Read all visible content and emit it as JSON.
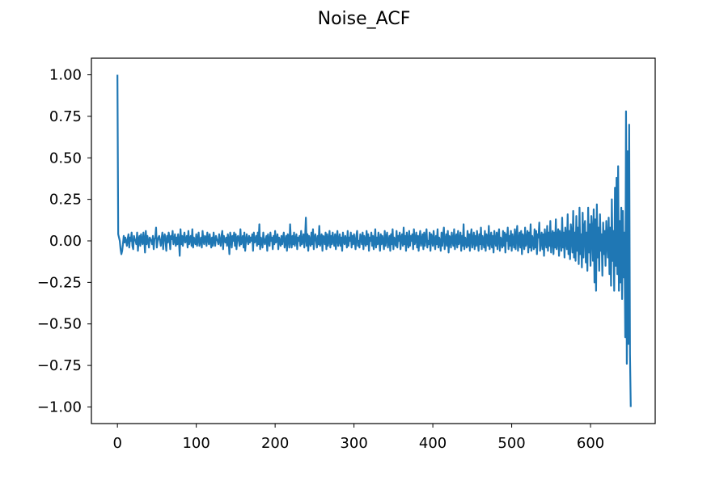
{
  "chart_data": {
    "type": "line",
    "title": "Noise_ACF",
    "xlabel": "",
    "ylabel": "",
    "xlim": [
      -33,
      682
    ],
    "ylim": [
      -1.1,
      1.1
    ],
    "grid": false,
    "x_ticks": [
      0,
      100,
      200,
      300,
      400,
      500,
      600
    ],
    "x_tick_labels": [
      "0",
      "100",
      "200",
      "300",
      "400",
      "500",
      "600"
    ],
    "y_ticks": [
      1.0,
      0.75,
      0.5,
      0.25,
      0.0,
      -0.25,
      -0.5,
      -0.75,
      -1.0
    ],
    "y_tick_labels": [
      "1.00",
      "0.75",
      "0.50",
      "0.25",
      "0.00",
      "−0.25",
      "−0.50",
      "−0.75",
      "−1.00"
    ],
    "series": [
      {
        "color": "#1f77b4",
        "x_start": 0,
        "x_step": 1,
        "values": [
          1.0,
          0.04,
          0.02,
          0.0,
          -0.05,
          -0.08,
          -0.06,
          -0.02,
          0.03,
          -0.01,
          0.02,
          0.0,
          -0.03,
          0.01,
          0.04,
          -0.04,
          0.02,
          0.0,
          0.05,
          -0.03,
          -0.05,
          0.03,
          0.01,
          0.0,
          -0.02,
          0.05,
          -0.06,
          0.01,
          0.03,
          -0.03,
          0.04,
          0.0,
          -0.02,
          0.05,
          0.01,
          -0.07,
          0.06,
          -0.02,
          0.03,
          0.0,
          -0.04,
          0.02,
          0.01,
          0.0,
          -0.02,
          0.03,
          -0.05,
          0.01,
          0.02,
          0.08,
          -0.04,
          0.0,
          0.02,
          0.03,
          0.0,
          -0.03,
          0.01,
          0.05,
          -0.05,
          0.02,
          0.04,
          0.0,
          -0.06,
          0.03,
          -0.01,
          0.05,
          0.02,
          -0.05,
          0.03,
          0.01,
          0.06,
          -0.02,
          0.0,
          0.04,
          -0.03,
          0.02,
          -0.02,
          0.04,
          0.0,
          -0.09,
          0.07,
          -0.02,
          0.03,
          -0.03,
          0.02,
          0.05,
          -0.01,
          0.0,
          0.03,
          -0.04,
          0.06,
          -0.02,
          0.01,
          0.03,
          -0.03,
          0.07,
          -0.04,
          0.02,
          0.0,
          -0.02,
          0.04,
          -0.03,
          0.01,
          0.05,
          -0.03,
          0.0,
          0.02,
          -0.04,
          0.06,
          0.0,
          -0.02,
          0.03,
          0.02,
          -0.03,
          0.05,
          0.01,
          -0.02,
          0.04,
          0.0,
          -0.04,
          0.02,
          -0.03,
          0.05,
          0.0,
          -0.03,
          0.03,
          0.01,
          0.0,
          -0.02,
          0.04,
          0.0,
          -0.03,
          0.03,
          0.06,
          -0.05,
          0.03,
          0.0,
          -0.01,
          0.02,
          -0.03,
          0.04,
          0.01,
          -0.08,
          0.05,
          0.02,
          -0.04,
          0.03,
          0.0,
          0.05,
          -0.03,
          0.04,
          -0.05,
          0.02,
          0.03,
          0.0,
          -0.03,
          0.07,
          -0.02,
          0.0,
          0.03,
          -0.04,
          0.05,
          -0.06,
          0.0,
          0.04,
          0.0,
          -0.02,
          0.03,
          -0.01,
          0.02,
          0.0,
          0.04,
          -0.06,
          0.05,
          -0.01,
          0.0,
          0.03,
          -0.03,
          0.05,
          -0.02,
          0.1,
          -0.05,
          0.02,
          0.0,
          -0.04,
          0.05,
          0.0,
          -0.02,
          0.01,
          0.03,
          -0.06,
          0.04,
          0.0,
          -0.03,
          0.05,
          0.0,
          0.02,
          -0.05,
          0.03,
          -0.02,
          0.06,
          -0.01,
          0.0,
          0.04,
          -0.05,
          0.02,
          0.0,
          -0.03,
          0.03,
          -0.02,
          0.02,
          0.05,
          -0.04,
          0.0,
          0.03,
          -0.06,
          0.04,
          0.02,
          -0.04,
          0.1,
          0.0,
          -0.04,
          0.03,
          -0.02,
          0.05,
          -0.03,
          0.01,
          0.04,
          -0.05,
          0.02,
          0.0,
          0.03,
          -0.03,
          0.06,
          -0.02,
          0.0,
          0.04,
          -0.04,
          0.02,
          0.14,
          -0.03,
          0.04,
          -0.06,
          0.03,
          0.0,
          -0.03,
          0.05,
          -0.02,
          0.07,
          -0.05,
          0.02,
          0.04,
          0.0,
          -0.04,
          0.03,
          -0.02,
          0.09,
          -0.03,
          0.0,
          0.04,
          -0.06,
          0.03,
          0.02,
          -0.02,
          0.05,
          -0.05,
          0.04,
          -0.03,
          0.0,
          0.06,
          -0.04,
          0.03,
          -0.02,
          0.05,
          0.0,
          -0.03,
          0.04,
          -0.05,
          0.02,
          0.06,
          -0.03,
          0.0,
          0.04,
          -0.03,
          0.02,
          -0.06,
          0.05,
          0.0,
          -0.02,
          0.03,
          0.0,
          -0.04,
          0.06,
          -0.03,
          0.02,
          0.0,
          0.05,
          -0.04,
          0.03,
          -0.02,
          0.04,
          0.0,
          -0.05,
          0.03,
          0.06,
          -0.03,
          0.0,
          -0.04,
          0.04,
          0.02,
          -0.02,
          0.05,
          -0.05,
          0.03,
          0.0,
          -0.03,
          0.06,
          -0.02,
          0.04,
          -0.06,
          0.02,
          0.0,
          0.05,
          -0.03,
          0.03,
          -0.05,
          0.0,
          0.07,
          -0.04,
          0.02,
          -0.02,
          0.05,
          0.0,
          -0.06,
          0.04,
          -0.02,
          0.03,
          0.0,
          -0.05,
          0.06,
          -0.03,
          0.02,
          0.05,
          -0.04,
          0.0,
          0.03,
          -0.06,
          0.04,
          -0.02,
          0.07,
          -0.05,
          0.02,
          0.0,
          -0.03,
          0.06,
          -0.04,
          0.03,
          0.0,
          0.05,
          -0.05,
          0.02,
          0.04,
          -0.03,
          0.08,
          -0.02,
          0.03,
          -0.06,
          0.05,
          0.0,
          -0.04,
          0.06,
          -0.03,
          0.03,
          0.0,
          0.04,
          -0.05,
          0.07,
          -0.02,
          0.0,
          0.05,
          -0.04,
          0.03,
          -0.06,
          0.02,
          0.06,
          -0.03,
          0.0,
          0.04,
          -0.05,
          0.05,
          -0.03,
          0.02,
          0.07,
          -0.04,
          0.0,
          -0.02,
          0.05,
          -0.06,
          0.04,
          0.02,
          -0.03,
          0.06,
          0.0,
          -0.05,
          0.03,
          -0.02,
          0.07,
          -0.04,
          0.02,
          0.0,
          -0.06,
          0.05,
          -0.03,
          0.03,
          0.08,
          -0.05,
          0.0,
          0.04,
          -0.03,
          0.06,
          -0.07,
          0.03,
          0.02,
          -0.04,
          0.05,
          0.0,
          -0.03,
          0.07,
          -0.05,
          0.02,
          0.04,
          -0.04,
          0.06,
          -0.02,
          0.0,
          0.05,
          -0.06,
          0.03,
          -0.03,
          0.1,
          -0.05,
          0.02,
          0.0,
          -0.04,
          0.06,
          -0.03,
          0.04,
          -0.06,
          0.03,
          0.07,
          -0.04,
          0.0,
          0.05,
          -0.05,
          0.03,
          -0.03,
          0.06,
          0.0,
          -0.06,
          0.04,
          -0.02,
          0.08,
          -0.05,
          0.03,
          0.0,
          -0.04,
          0.06,
          -0.06,
          0.04,
          0.02,
          -0.03,
          0.09,
          -0.05,
          0.0,
          0.05,
          -0.04,
          0.03,
          -0.07,
          0.06,
          0.0,
          -0.03,
          0.05,
          -0.05,
          0.03,
          0.07,
          -0.06,
          0.02,
          0.0,
          -0.04,
          0.06,
          -0.03,
          0.05,
          -0.07,
          0.04,
          0.0,
          0.08,
          -0.05,
          0.03,
          -0.03,
          0.06,
          -0.06,
          0.04,
          0.0,
          -0.04,
          0.07,
          -0.05,
          0.03,
          0.09,
          -0.06,
          0.0,
          0.05,
          -0.04,
          0.06,
          -0.08,
          0.04,
          0.02,
          -0.05,
          0.08,
          -0.03,
          0.0,
          0.06,
          -0.07,
          0.05,
          -0.04,
          0.1,
          -0.06,
          0.03,
          0.0,
          -0.05,
          0.07,
          -0.04,
          0.06,
          -0.08,
          0.04,
          0.02,
          0.11,
          -0.06,
          0.0,
          0.05,
          -0.05,
          0.04,
          -0.09,
          0.07,
          0.0,
          -0.04,
          0.09,
          -0.06,
          0.05,
          -0.03,
          0.12,
          -0.07,
          0.02,
          0.06,
          -0.08,
          0.05,
          -0.04,
          0.13,
          -0.05,
          0.0,
          0.07,
          -0.09,
          0.06,
          0.02,
          -0.06,
          0.14,
          -0.04,
          0.05,
          -0.1,
          0.08,
          0.0,
          -0.05,
          0.16,
          -0.08,
          0.06,
          -0.11,
          0.1,
          0.03,
          -0.07,
          0.18,
          -0.1,
          0.05,
          -0.12,
          0.15,
          -0.06,
          0.08,
          -0.14,
          0.2,
          -0.08,
          0.04,
          -0.16,
          0.17,
          -0.1,
          0.08,
          0.12,
          -0.13,
          0.05,
          -0.18,
          0.2,
          -0.07,
          0.1,
          -0.15,
          0.15,
          0.05,
          -0.12,
          0.19,
          -0.25,
          0.13,
          -0.3,
          0.22,
          -0.1,
          0.08,
          -0.18,
          0.16,
          -0.06,
          0.04,
          -0.21,
          0.11,
          -0.08,
          0.06,
          -0.15,
          0.12,
          0.0,
          -0.1,
          0.14,
          -0.2,
          0.08,
          -0.27,
          0.25,
          -0.12,
          0.06,
          -0.3,
          0.32,
          -0.15,
          0.38,
          -0.2,
          0.45,
          -0.3,
          0.12,
          -0.25,
          0.2,
          -0.35,
          0.18,
          -0.22,
          0.05,
          -0.58,
          0.78,
          -0.74,
          0.54,
          -0.62,
          0.7,
          -0.68,
          -1.0
        ]
      }
    ]
  }
}
